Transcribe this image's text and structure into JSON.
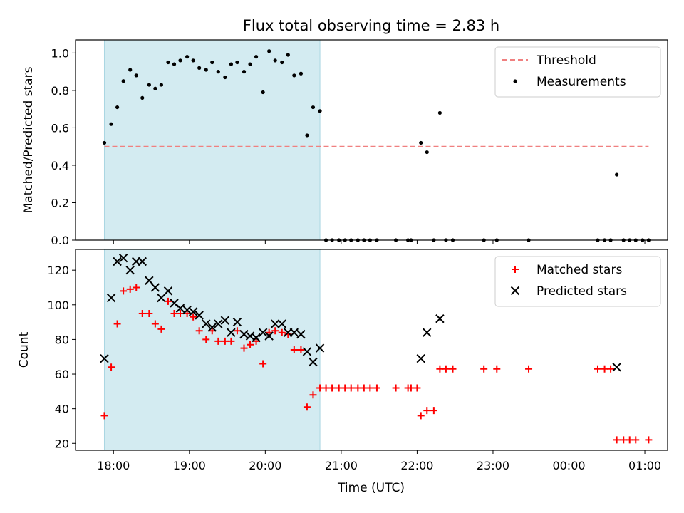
{
  "chart_data": {
    "title": "Flux total observing time = 2.83 h",
    "xlabel": "Time (UTC)",
    "x_unit": "hours UTC (values past 24 are the next day)",
    "xlim": [
      17.5,
      25.3
    ],
    "xticks": [
      {
        "value": 18,
        "label": "18:00"
      },
      {
        "value": 19,
        "label": "19:00"
      },
      {
        "value": 20,
        "label": "20:00"
      },
      {
        "value": 21,
        "label": "21:00"
      },
      {
        "value": 22,
        "label": "22:00"
      },
      {
        "value": 23,
        "label": "23:00"
      },
      {
        "value": 24,
        "label": "00:00"
      },
      {
        "value": 25,
        "label": "01:00"
      }
    ],
    "shaded_span": [
      17.88,
      20.72
    ],
    "shade_color": "#d3ebf1",
    "panels": [
      {
        "type": "scatter",
        "ylabel": "Matched/Predicted stars",
        "ylim": [
          0.0,
          1.07
        ],
        "yticks": [
          0.0,
          0.2,
          0.4,
          0.6,
          0.8,
          1.0
        ],
        "ytick_labels": [
          "0.0",
          "0.2",
          "0.4",
          "0.6",
          "0.8",
          "1.0"
        ],
        "legend_position": "top-right",
        "threshold": {
          "name": "Threshold",
          "value": 0.5,
          "x_range": [
            17.88,
            25.05
          ],
          "color": "#f08080"
        },
        "series": [
          {
            "name": "Measurements",
            "marker": "dot",
            "color": "#000000",
            "points": [
              [
                17.88,
                0.52
              ],
              [
                17.97,
                0.62
              ],
              [
                18.05,
                0.71
              ],
              [
                18.13,
                0.85
              ],
              [
                18.22,
                0.91
              ],
              [
                18.3,
                0.88
              ],
              [
                18.38,
                0.76
              ],
              [
                18.47,
                0.83
              ],
              [
                18.55,
                0.81
              ],
              [
                18.63,
                0.83
              ],
              [
                18.72,
                0.95
              ],
              [
                18.8,
                0.94
              ],
              [
                18.88,
                0.96
              ],
              [
                18.97,
                0.98
              ],
              [
                19.05,
                0.96
              ],
              [
                19.13,
                0.92
              ],
              [
                19.22,
                0.91
              ],
              [
                19.3,
                0.95
              ],
              [
                19.38,
                0.9
              ],
              [
                19.47,
                0.87
              ],
              [
                19.55,
                0.94
              ],
              [
                19.63,
                0.95
              ],
              [
                19.72,
                0.9
              ],
              [
                19.8,
                0.94
              ],
              [
                19.88,
                0.98
              ],
              [
                19.97,
                0.79
              ],
              [
                20.05,
                1.01
              ],
              [
                20.13,
                0.96
              ],
              [
                20.22,
                0.95
              ],
              [
                20.3,
                0.99
              ],
              [
                20.38,
                0.88
              ],
              [
                20.47,
                0.89
              ],
              [
                20.55,
                0.56
              ],
              [
                20.63,
                0.71
              ],
              [
                20.72,
                0.69
              ],
              [
                20.8,
                0.0
              ],
              [
                20.88,
                0.0
              ],
              [
                20.97,
                0.0
              ],
              [
                21.05,
                0.0
              ],
              [
                21.13,
                0.0
              ],
              [
                21.22,
                0.0
              ],
              [
                21.3,
                0.0
              ],
              [
                21.38,
                0.0
              ],
              [
                21.47,
                0.0
              ],
              [
                21.72,
                0.0
              ],
              [
                21.88,
                0.0
              ],
              [
                21.92,
                0.0
              ],
              [
                22.05,
                0.52
              ],
              [
                22.13,
                0.47
              ],
              [
                22.22,
                0.0
              ],
              [
                22.3,
                0.68
              ],
              [
                22.38,
                0.0
              ],
              [
                22.47,
                0.0
              ],
              [
                22.88,
                0.0
              ],
              [
                23.05,
                0.0
              ],
              [
                23.47,
                0.0
              ],
              [
                24.38,
                0.0
              ],
              [
                24.47,
                0.0
              ],
              [
                24.55,
                0.0
              ],
              [
                24.63,
                0.35
              ],
              [
                24.72,
                0.0
              ],
              [
                24.8,
                0.0
              ],
              [
                24.88,
                0.0
              ],
              [
                24.97,
                0.0
              ],
              [
                25.05,
                0.0
              ]
            ]
          }
        ]
      },
      {
        "type": "scatter",
        "ylabel": "Count",
        "ylim": [
          16,
          132
        ],
        "yticks": [
          20,
          40,
          60,
          80,
          100,
          120
        ],
        "ytick_labels": [
          "20",
          "40",
          "60",
          "80",
          "100",
          "120"
        ],
        "legend_position": "top-right",
        "series": [
          {
            "name": "Matched stars",
            "marker": "plus",
            "color": "#ff0000",
            "points": [
              [
                17.88,
                36
              ],
              [
                17.97,
                64
              ],
              [
                18.05,
                89
              ],
              [
                18.13,
                108
              ],
              [
                18.22,
                109
              ],
              [
                18.3,
                110
              ],
              [
                18.38,
                95
              ],
              [
                18.47,
                95
              ],
              [
                18.55,
                89
              ],
              [
                18.63,
                86
              ],
              [
                18.72,
                102
              ],
              [
                18.8,
                95
              ],
              [
                18.88,
                95
              ],
              [
                18.97,
                95
              ],
              [
                19.05,
                93
              ],
              [
                19.13,
                85
              ],
              [
                19.22,
                80
              ],
              [
                19.3,
                85
              ],
              [
                19.38,
                79
              ],
              [
                19.47,
                79
              ],
              [
                19.55,
                79
              ],
              [
                19.63,
                85
              ],
              [
                19.72,
                75
              ],
              [
                19.8,
                77
              ],
              [
                19.88,
                79
              ],
              [
                19.97,
                66
              ],
              [
                20.05,
                84
              ],
              [
                20.13,
                85
              ],
              [
                20.22,
                84
              ],
              [
                20.3,
                83
              ],
              [
                20.38,
                74
              ],
              [
                20.47,
                74
              ],
              [
                20.55,
                41
              ],
              [
                20.63,
                48
              ],
              [
                20.72,
                52
              ],
              [
                20.8,
                52
              ],
              [
                20.88,
                52
              ],
              [
                20.97,
                52
              ],
              [
                21.05,
                52
              ],
              [
                21.13,
                52
              ],
              [
                21.22,
                52
              ],
              [
                21.3,
                52
              ],
              [
                21.38,
                52
              ],
              [
                21.47,
                52
              ],
              [
                21.72,
                52
              ],
              [
                21.88,
                52
              ],
              [
                21.92,
                52
              ],
              [
                22.0,
                52
              ],
              [
                22.05,
                36
              ],
              [
                22.13,
                39
              ],
              [
                22.22,
                39
              ],
              [
                22.3,
                63
              ],
              [
                22.38,
                63
              ],
              [
                22.47,
                63
              ],
              [
                22.88,
                63
              ],
              [
                23.05,
                63
              ],
              [
                23.47,
                63
              ],
              [
                24.38,
                63
              ],
              [
                24.47,
                63
              ],
              [
                24.55,
                63
              ],
              [
                24.63,
                22
              ],
              [
                24.72,
                22
              ],
              [
                24.8,
                22
              ],
              [
                24.88,
                22
              ],
              [
                25.05,
                22
              ]
            ]
          },
          {
            "name": "Predicted stars",
            "marker": "x",
            "color": "#000000",
            "points": [
              [
                17.88,
                69
              ],
              [
                17.97,
                104
              ],
              [
                18.05,
                125
              ],
              [
                18.13,
                127
              ],
              [
                18.22,
                120
              ],
              [
                18.3,
                125
              ],
              [
                18.38,
                125
              ],
              [
                18.47,
                114
              ],
              [
                18.55,
                110
              ],
              [
                18.63,
                104
              ],
              [
                18.72,
                108
              ],
              [
                18.8,
                101
              ],
              [
                18.88,
                98
              ],
              [
                18.97,
                97
              ],
              [
                19.05,
                96
              ],
              [
                19.13,
                94
              ],
              [
                19.22,
                89
              ],
              [
                19.3,
                87
              ],
              [
                19.38,
                89
              ],
              [
                19.47,
                91
              ],
              [
                19.55,
                84
              ],
              [
                19.63,
                90
              ],
              [
                19.72,
                83
              ],
              [
                19.8,
                82
              ],
              [
                19.88,
                81
              ],
              [
                19.97,
                84
              ],
              [
                20.05,
                82
              ],
              [
                20.13,
                89
              ],
              [
                20.22,
                89
              ],
              [
                20.3,
                84
              ],
              [
                20.38,
                84
              ],
              [
                20.47,
                83
              ],
              [
                20.55,
                73
              ],
              [
                20.63,
                67
              ],
              [
                20.72,
                75
              ],
              [
                22.05,
                69
              ],
              [
                22.13,
                84
              ],
              [
                22.3,
                92
              ],
              [
                24.63,
                64
              ]
            ]
          }
        ]
      }
    ]
  }
}
